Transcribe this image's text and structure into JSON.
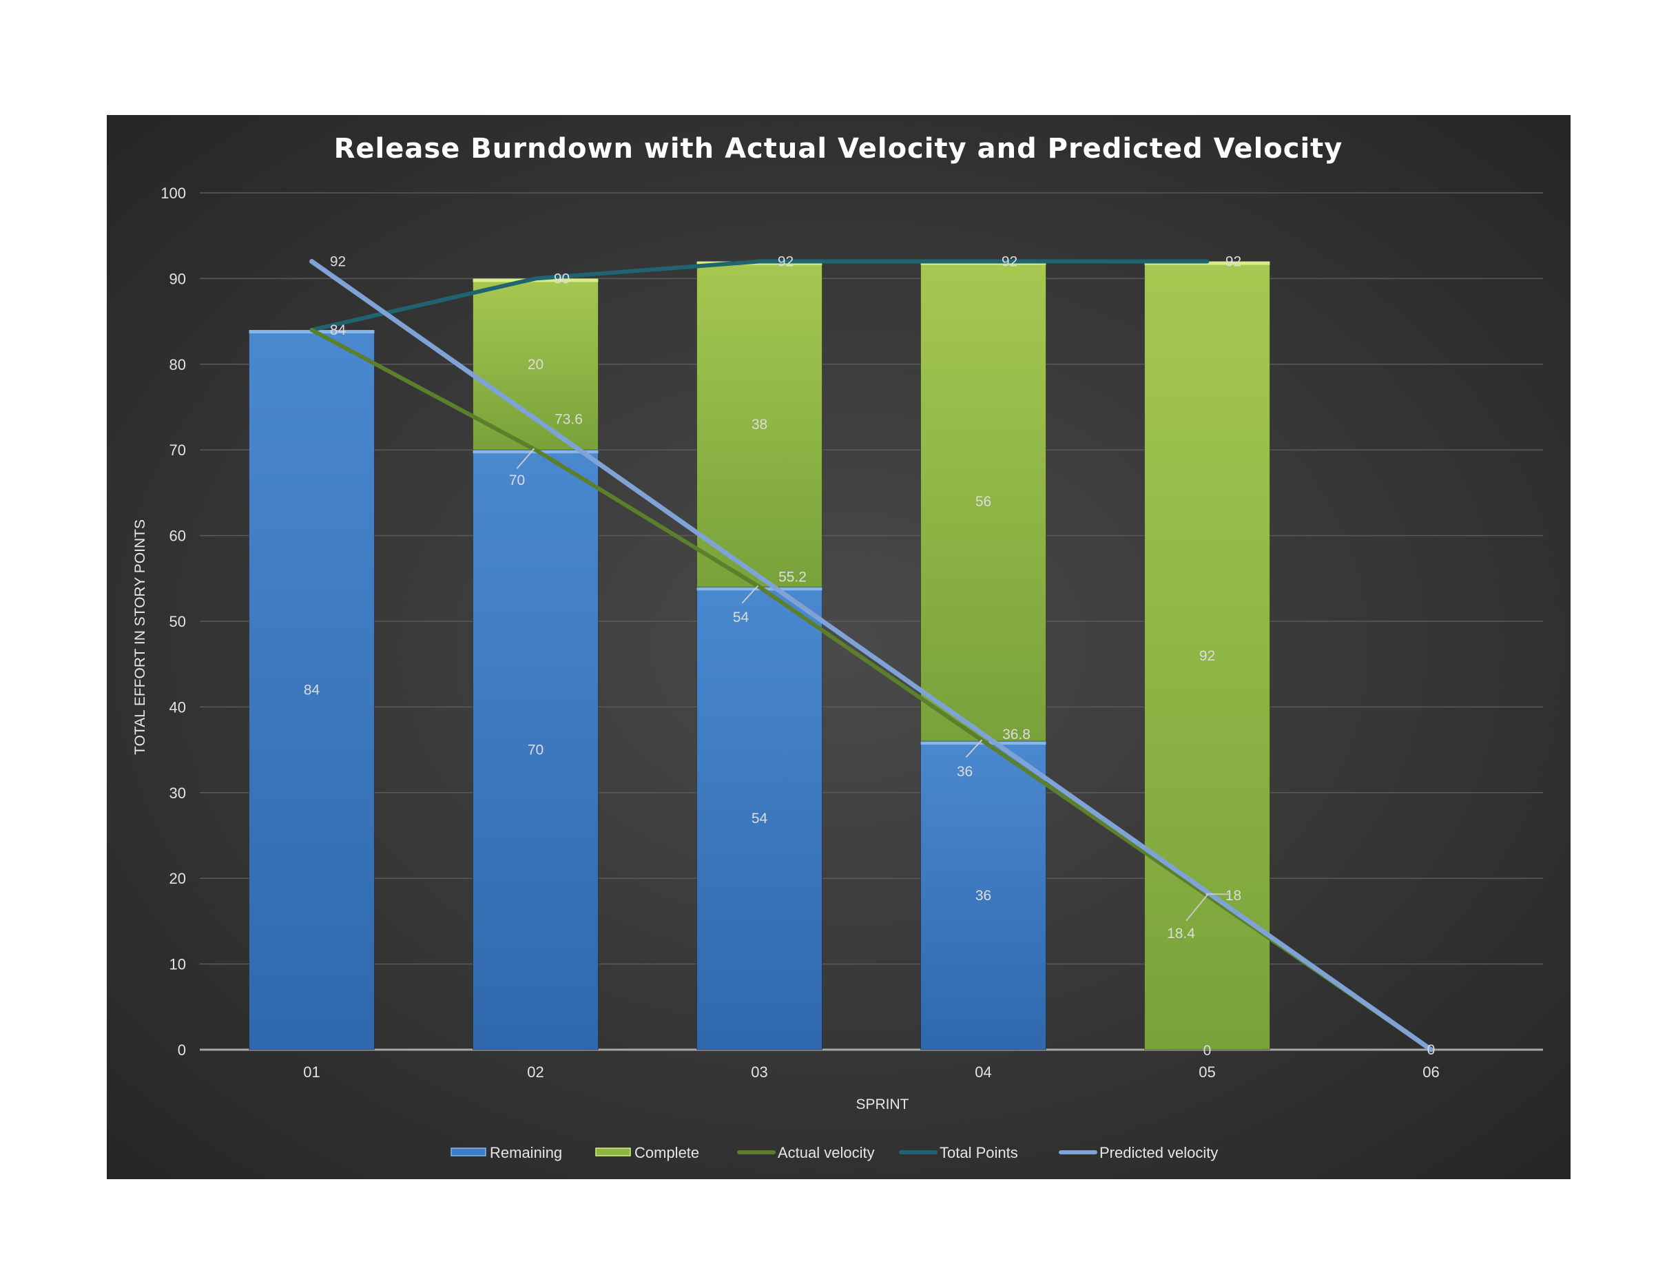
{
  "chart_data": {
    "type": "bar",
    "title": "Release Burndown with Actual Velocity and Predicted Velocity",
    "xlabel": "SPRINT",
    "ylabel": "TOTAL EFFORT  IN STORY POINTS",
    "ylim": [
      0,
      100
    ],
    "yticks": [
      0,
      10,
      20,
      30,
      40,
      50,
      60,
      70,
      80,
      90,
      100
    ],
    "categories": [
      "01",
      "02",
      "03",
      "04",
      "05",
      "06"
    ],
    "grid": true,
    "legend_position": "bottom",
    "series": [
      {
        "name": "Remaining",
        "kind": "bar-stacked",
        "color": "#3d7cc4",
        "values": [
          84,
          70,
          54,
          36,
          0,
          null
        ],
        "labels": [
          "84",
          "70",
          "54",
          "36",
          "0",
          ""
        ]
      },
      {
        "name": "Complete",
        "kind": "bar-stacked",
        "color": "#8db544",
        "values": [
          null,
          20,
          38,
          56,
          92,
          null
        ],
        "labels": [
          "",
          "20",
          "38",
          "56",
          "92",
          ""
        ]
      },
      {
        "name": "Actual velocity",
        "kind": "line",
        "color": "#5b7f2a",
        "values": [
          84,
          70,
          54,
          36,
          18,
          0
        ],
        "labels": [
          "84",
          "70",
          "54",
          "36",
          "18",
          "0"
        ]
      },
      {
        "name": "Total Points",
        "kind": "line",
        "color": "#1f6470",
        "values": [
          84,
          90,
          92,
          92,
          92,
          null
        ],
        "labels": [
          "84",
          "90",
          "92",
          "92",
          "92",
          ""
        ]
      },
      {
        "name": "Predicted velocity",
        "kind": "line",
        "color": "#7fa3d6",
        "values": [
          92,
          73.6,
          55.2,
          36.8,
          18.4,
          0
        ],
        "labels": [
          "92",
          "73.6",
          "55.2",
          "36.8",
          "18.4",
          "0"
        ]
      }
    ]
  }
}
